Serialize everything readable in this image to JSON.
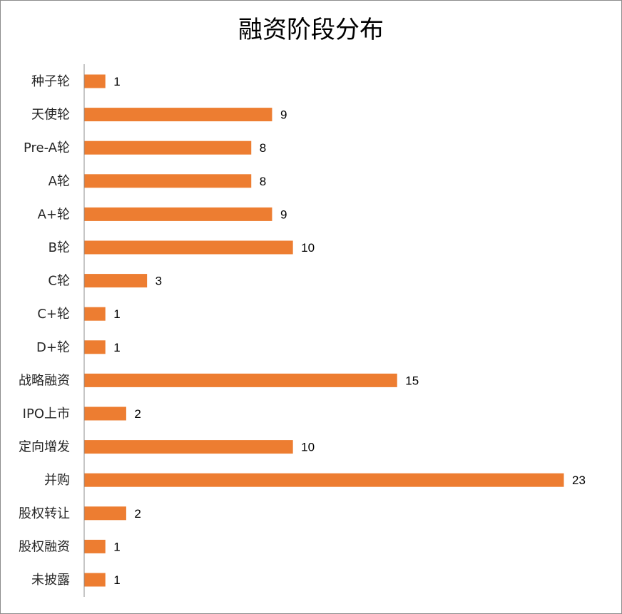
{
  "chart_data": {
    "type": "bar",
    "orientation": "horizontal",
    "title": "融资阶段分布",
    "categories": [
      "种子轮",
      "天使轮",
      "Pre-A轮",
      "A轮",
      "A+轮",
      "B轮",
      "C轮",
      "C+轮",
      "D+轮",
      "战略融资",
      "IPO上市",
      "定向增发",
      "并购",
      "股权转让",
      "股权融资",
      "未披露"
    ],
    "values": [
      1,
      9,
      8,
      8,
      9,
      10,
      3,
      1,
      1,
      15,
      2,
      10,
      23,
      2,
      1,
      1
    ],
    "bar_color": "#ED7D31",
    "axis_color": "#8C8C8C",
    "data_labels": true,
    "grid": false,
    "legend": "none"
  }
}
